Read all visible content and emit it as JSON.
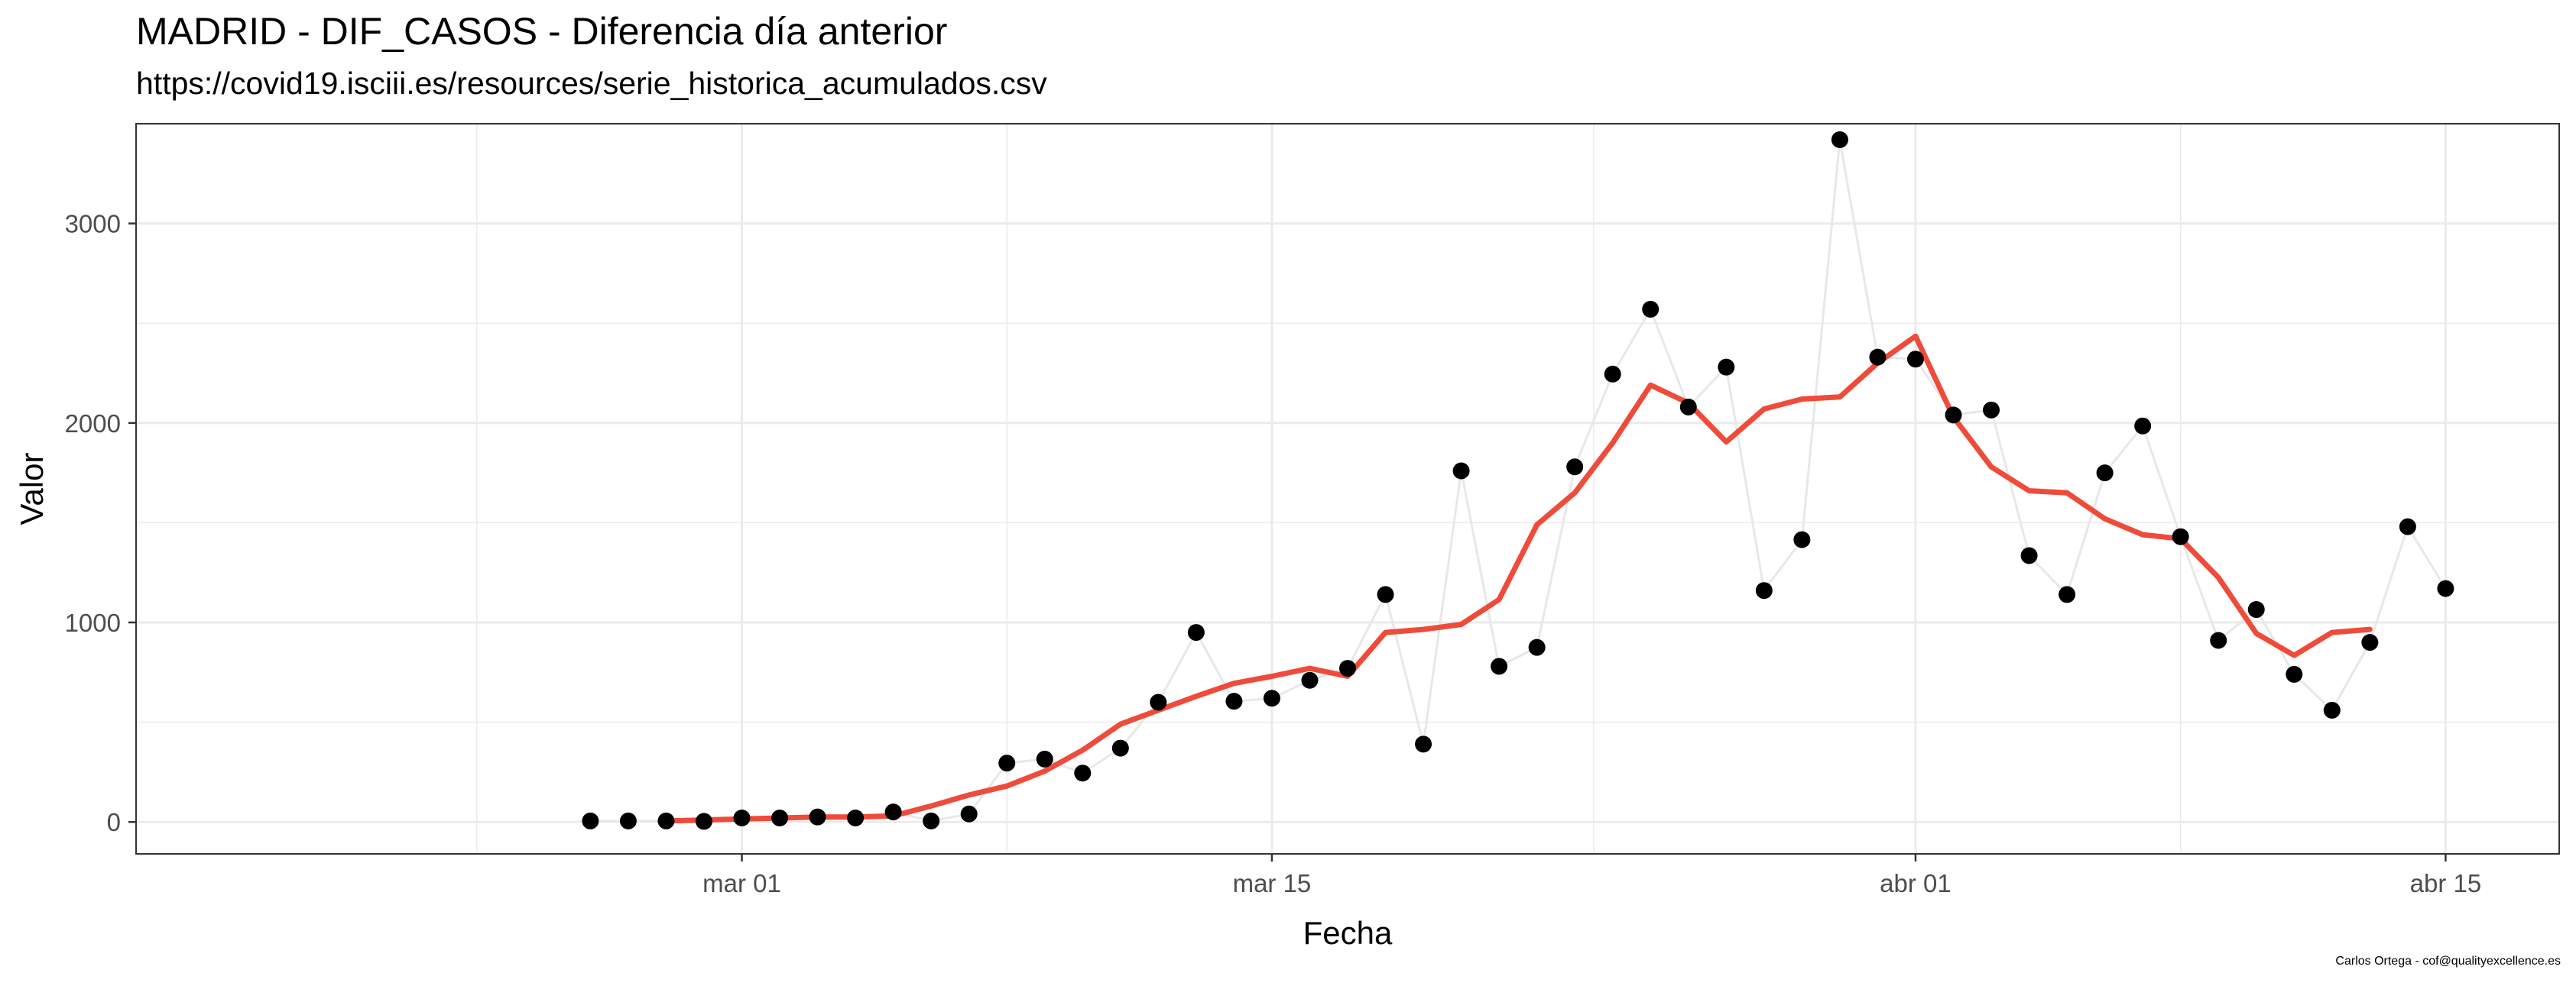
{
  "title": "MADRID - DIF_CASOS - Diferencia día anterior",
  "subtitle": "https://covid19.isciii.es/resources/serie_historica_acumulados.csv",
  "caption": "Carlos Ortega - cof@qualityexcellence.es",
  "chart_data": {
    "type": "line",
    "xlabel": "Fecha",
    "ylabel": "Valor",
    "xlim": [
      "2020-02-14",
      "2020-04-18"
    ],
    "ylim": [
      -160,
      3500
    ],
    "x_ticks": [
      {
        "date": "2020-03-01",
        "label": "mar 01"
      },
      {
        "date": "2020-03-15",
        "label": "mar 15"
      },
      {
        "date": "2020-04-01",
        "label": "abr 01"
      },
      {
        "date": "2020-04-15",
        "label": "abr 15"
      }
    ],
    "y_ticks": [
      0,
      1000,
      2000,
      3000
    ],
    "grid": true,
    "colors": {
      "points": "#000000",
      "raw_line": "#e8e8e8",
      "smooth_line": "#ef4b3a",
      "grid": "#ebebeb"
    },
    "series": [
      {
        "type": "scatter-line",
        "x": [
          "2020-02-26",
          "2020-02-27",
          "2020-02-28",
          "2020-02-29",
          "2020-03-01",
          "2020-03-02",
          "2020-03-03",
          "2020-03-04",
          "2020-03-05",
          "2020-03-06",
          "2020-03-07",
          "2020-03-08",
          "2020-03-09",
          "2020-03-10",
          "2020-03-11",
          "2020-03-12",
          "2020-03-13",
          "2020-03-14",
          "2020-03-15",
          "2020-03-16",
          "2020-03-17",
          "2020-03-18",
          "2020-03-19",
          "2020-03-20",
          "2020-03-21",
          "2020-03-22",
          "2020-03-23",
          "2020-03-24",
          "2020-03-25",
          "2020-03-26",
          "2020-03-27",
          "2020-03-28",
          "2020-03-29",
          "2020-03-30",
          "2020-03-31",
          "2020-04-01",
          "2020-04-02",
          "2020-04-03",
          "2020-04-04",
          "2020-04-05",
          "2020-04-06",
          "2020-04-07",
          "2020-04-08",
          "2020-04-09",
          "2020-04-10",
          "2020-04-11",
          "2020-04-12",
          "2020-04-13",
          "2020-04-14",
          "2020-04-15"
        ],
        "values": [
          5,
          5,
          5,
          3,
          20,
          20,
          25,
          20,
          50,
          5,
          40,
          295,
          315,
          245,
          370,
          600,
          950,
          605,
          620,
          710,
          770,
          1140,
          390,
          1760,
          780,
          875,
          1780,
          2245,
          2570,
          2080,
          2280,
          1160,
          1415,
          3420,
          2330,
          2320,
          2040,
          2065,
          1335,
          1140,
          1750,
          1985,
          1430,
          910,
          1065,
          740,
          560,
          900,
          1480,
          1170
        ]
      },
      {
        "type": "line",
        "x": [
          "2020-02-28",
          "2020-02-29",
          "2020-03-01",
          "2020-03-02",
          "2020-03-03",
          "2020-03-04",
          "2020-03-05",
          "2020-03-06",
          "2020-03-07",
          "2020-03-08",
          "2020-03-09",
          "2020-03-10",
          "2020-03-11",
          "2020-03-12",
          "2020-03-13",
          "2020-03-14",
          "2020-03-15",
          "2020-03-16",
          "2020-03-17",
          "2020-03-18",
          "2020-03-19",
          "2020-03-20",
          "2020-03-21",
          "2020-03-22",
          "2020-03-23",
          "2020-03-24",
          "2020-03-25",
          "2020-03-26",
          "2020-03-27",
          "2020-03-28",
          "2020-03-29",
          "2020-03-30",
          "2020-03-31",
          "2020-04-01",
          "2020-04-02",
          "2020-04-03",
          "2020-04-04",
          "2020-04-05",
          "2020-04-06",
          "2020-04-07",
          "2020-04-08",
          "2020-04-09",
          "2020-04-10",
          "2020-04-11",
          "2020-04-12",
          "2020-04-13"
        ],
        "values": [
          5,
          10,
          15,
          20,
          25,
          25,
          30,
          80,
          135,
          180,
          255,
          360,
          490,
          560,
          630,
          695,
          730,
          770,
          730,
          950,
          965,
          990,
          1115,
          1490,
          1650,
          1900,
          2190,
          2100,
          1905,
          2070,
          2120,
          2130,
          2300,
          2435,
          2030,
          1780,
          1660,
          1650,
          1520,
          1440,
          1420,
          1225,
          945,
          835,
          950,
          965
        ]
      }
    ]
  }
}
